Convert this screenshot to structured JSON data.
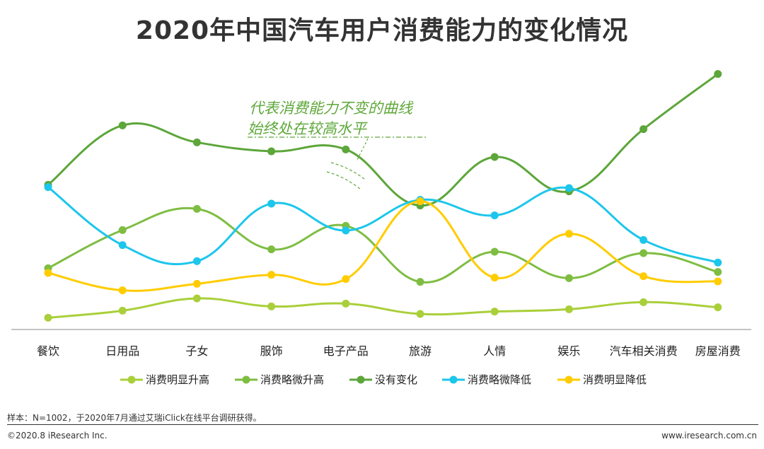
{
  "chart_data": {
    "type": "line",
    "title": "2020年中国汽车用户消费能力的变化情况",
    "categories": [
      "餐饮",
      "日用品",
      "子女",
      "服饰",
      "电子产品",
      "旅游",
      "人情",
      "娱乐",
      "汽车相关消费",
      "房屋消费"
    ],
    "series": [
      {
        "name": "消费明显升高",
        "color": "#a9cf3a",
        "values": [
          2.5,
          4.0,
          6.6,
          4.9,
          5.5,
          3.3,
          3.8,
          4.3,
          5.8,
          4.7
        ]
      },
      {
        "name": "消费略微升高",
        "color": "#7ebd42",
        "values": [
          13.0,
          21.1,
          25.6,
          17.0,
          22.0,
          10.1,
          16.5,
          10.9,
          16.2,
          12.2
        ]
      },
      {
        "name": "没有变化",
        "color": "#5ca63a",
        "values": [
          30.7,
          43.3,
          39.7,
          37.8,
          38.2,
          26.3,
          36.6,
          29.3,
          42.5,
          54.2
        ]
      },
      {
        "name": "消费略微降低",
        "color": "#1cc6ec",
        "values": [
          30.2,
          17.9,
          14.5,
          26.7,
          21.0,
          27.5,
          24.2,
          30.0,
          19.0,
          14.2
        ]
      },
      {
        "name": "消费明显降低",
        "color": "#ffcc00",
        "values": [
          12.0,
          8.3,
          9.7,
          11.6,
          10.7,
          27.2,
          11.0,
          20.3,
          11.3,
          10.2
        ]
      }
    ],
    "ylim": [
      0,
      60
    ],
    "xlabel": "",
    "ylabel": "",
    "annotation": [
      "代表消费能力不变的曲线",
      "始终处在较高水平"
    ],
    "legend_position": "bottom"
  },
  "source_note": "样本：N=1002，于2020年7月通过艾瑞iClick在线平台调研获得。",
  "copyright": "©2020.8 iResearch Inc.",
  "website": "www.iresearch.com.cn"
}
